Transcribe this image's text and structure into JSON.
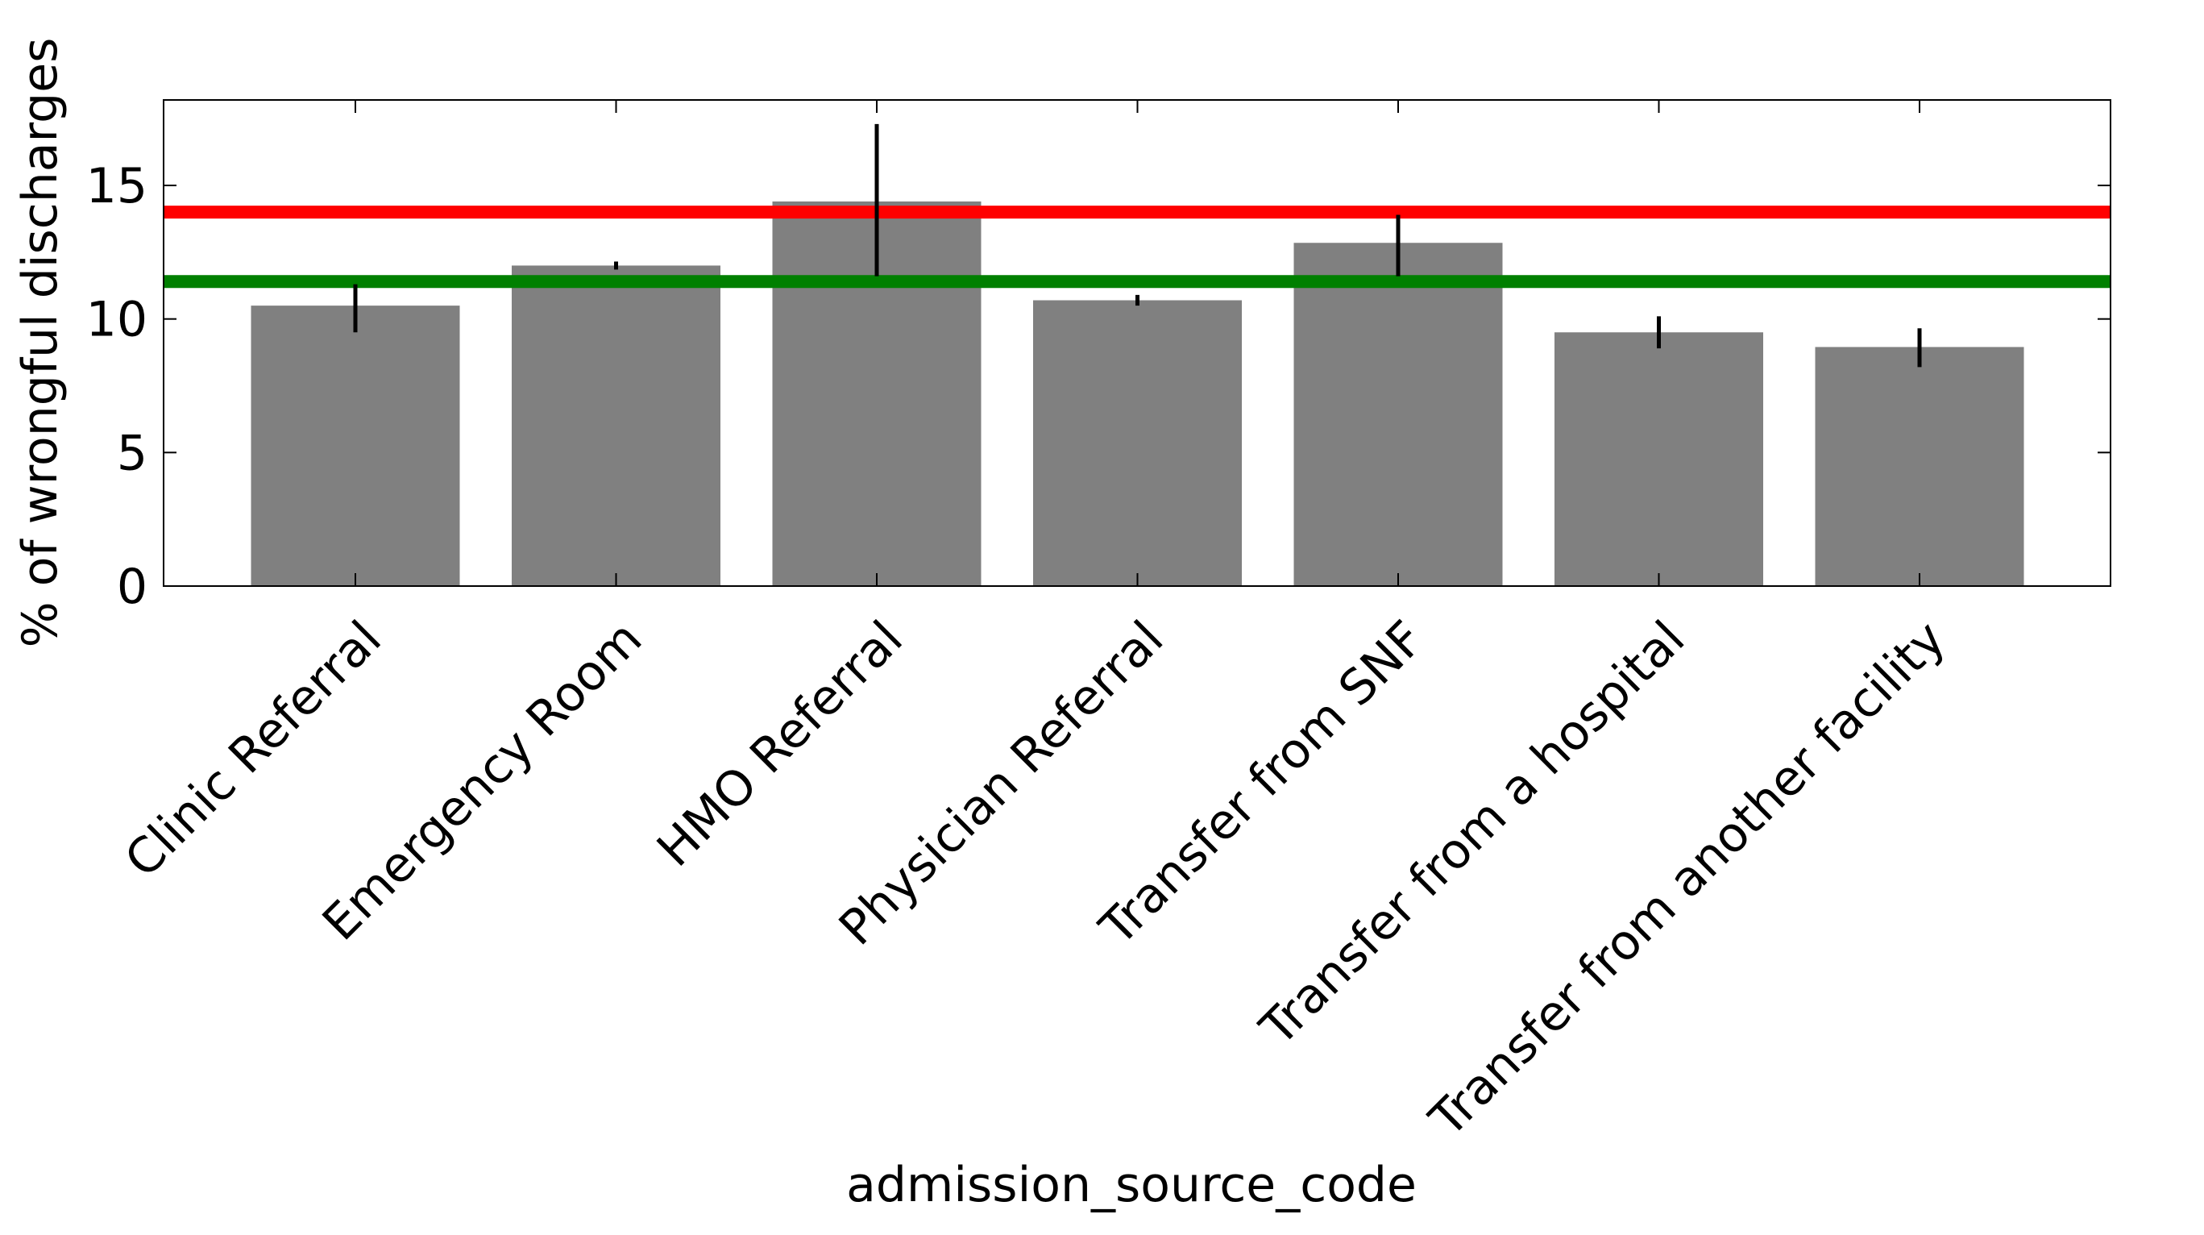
{
  "chart_data": {
    "type": "bar",
    "title": "",
    "xlabel": "admission_source_code",
    "ylabel": "% of wrongful discharges",
    "categories": [
      "Clinic Referral",
      "Emergency Room",
      "HMO Referral",
      "Physician Referral",
      "Transfer from SNF",
      "Transfer from a hospital",
      "Transfer from another facility"
    ],
    "values": [
      10.5,
      12.0,
      14.4,
      10.7,
      12.85,
      9.5,
      8.95
    ],
    "error_low": [
      9.5,
      11.85,
      11.6,
      10.5,
      11.6,
      8.9,
      8.2
    ],
    "error_high": [
      11.3,
      12.15,
      17.3,
      10.9,
      13.9,
      10.1,
      9.65
    ],
    "reference_lines": [
      {
        "value": 14.0,
        "color": "#ff0000"
      },
      {
        "value": 11.4,
        "color": "#008000"
      }
    ],
    "ylim": [
      0,
      18.2
    ],
    "yticks": [
      0,
      5,
      10,
      15
    ],
    "grid": false,
    "bar_color": "#808080",
    "error_color": "#000000"
  }
}
